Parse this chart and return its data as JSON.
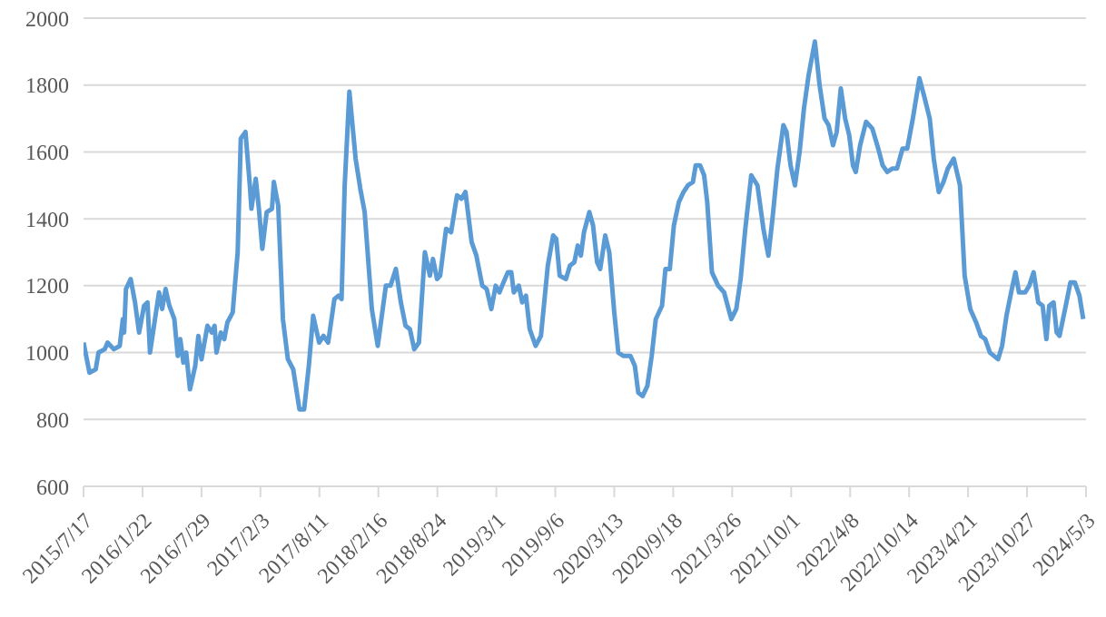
{
  "chart_data": {
    "type": "line",
    "x": [
      "2015-07-17",
      "2015-08-05",
      "2015-08-25",
      "2015-09-03",
      "2015-09-23",
      "2015-10-02",
      "2015-10-22",
      "2015-11-10",
      "2015-11-20",
      "2015-11-24",
      "2015-11-30",
      "2015-12-15",
      "2015-12-29",
      "2016-01-11",
      "2016-01-27",
      "2016-02-07",
      "2016-02-15",
      "2016-03-02",
      "2016-03-15",
      "2016-03-25",
      "2016-04-05",
      "2016-04-17",
      "2016-05-03",
      "2016-05-14",
      "2016-05-22",
      "2016-06-01",
      "2016-06-10",
      "2016-06-22",
      "2016-07-09",
      "2016-07-19",
      "2016-07-29",
      "2016-08-17",
      "2016-08-31",
      "2016-09-09",
      "2016-09-15",
      "2016-09-29",
      "2016-10-10",
      "2016-10-20",
      "2016-11-06",
      "2016-11-22",
      "2016-12-02",
      "2016-12-17",
      "2016-12-31",
      "2017-01-05",
      "2017-01-19",
      "2017-01-29",
      "2017-02-09",
      "2017-02-23",
      "2017-03-12",
      "2017-03-18",
      "2017-04-01",
      "2017-04-16",
      "2017-05-02",
      "2017-05-19",
      "2017-06-08",
      "2017-06-23",
      "2017-07-08",
      "2017-07-22",
      "2017-08-10",
      "2017-08-24",
      "2017-09-08",
      "2017-09-28",
      "2017-10-11",
      "2017-10-21",
      "2017-10-31",
      "2017-11-15",
      "2017-12-05",
      "2017-12-20",
      "2018-01-03",
      "2018-01-26",
      "2018-02-14",
      "2018-03-12",
      "2018-03-27",
      "2018-04-13",
      "2018-04-29",
      "2018-05-14",
      "2018-05-28",
      "2018-06-11",
      "2018-06-26",
      "2018-07-15",
      "2018-07-31",
      "2018-08-10",
      "2018-08-23",
      "2018-09-02",
      "2018-09-21",
      "2018-10-07",
      "2018-10-26",
      "2018-11-09",
      "2018-11-22",
      "2018-12-12",
      "2018-12-27",
      "2019-01-15",
      "2019-01-29",
      "2019-02-13",
      "2019-02-27",
      "2019-03-11",
      "2019-03-24",
      "2019-04-07",
      "2019-04-18",
      "2019-04-26",
      "2019-05-12",
      "2019-05-23",
      "2019-06-04",
      "2019-06-16",
      "2019-07-05",
      "2019-07-22",
      "2019-08-13",
      "2019-08-30",
      "2019-09-09",
      "2019-09-20",
      "2019-10-10",
      "2019-10-23",
      "2019-11-06",
      "2019-11-17",
      "2019-11-27",
      "2019-12-07",
      "2019-12-24",
      "2020-01-05",
      "2020-01-18",
      "2020-01-28",
      "2020-02-13",
      "2020-02-26",
      "2020-03-13",
      "2020-03-26",
      "2020-04-11",
      "2020-05-04",
      "2020-05-18",
      "2020-05-29",
      "2020-06-12",
      "2020-06-27",
      "2020-07-11",
      "2020-07-24",
      "2020-08-13",
      "2020-08-24",
      "2020-09-07",
      "2020-09-20",
      "2020-10-06",
      "2020-10-21",
      "2020-11-04",
      "2020-11-20",
      "2020-11-29",
      "2020-12-13",
      "2020-12-26",
      "2021-01-05",
      "2021-01-20",
      "2021-02-09",
      "2021-02-28",
      "2021-03-23",
      "2021-04-08",
      "2021-04-22",
      "2021-05-07",
      "2021-05-26",
      "2021-06-15",
      "2021-07-04",
      "2021-07-20",
      "2021-08-02",
      "2021-08-18",
      "2021-09-06",
      "2021-09-16",
      "2021-09-29",
      "2021-10-13",
      "2021-10-28",
      "2021-11-11",
      "2021-11-26",
      "2021-12-16",
      "2021-12-31",
      "2022-01-16",
      "2022-01-29",
      "2022-02-12",
      "2022-02-24",
      "2022-03-09",
      "2022-03-23",
      "2022-04-05",
      "2022-04-17",
      "2022-04-26",
      "2022-05-10",
      "2022-05-29",
      "2022-06-18",
      "2022-07-07",
      "2022-07-21",
      "2022-08-05",
      "2022-08-21",
      "2022-09-05",
      "2022-09-23",
      "2022-10-08",
      "2022-10-26",
      "2022-11-16",
      "2022-12-03",
      "2022-12-19",
      "2023-01-01",
      "2023-01-17",
      "2023-02-01",
      "2023-02-15",
      "2023-03-06",
      "2023-03-26",
      "2023-04-10",
      "2023-04-28",
      "2023-05-17",
      "2023-06-01",
      "2023-06-15",
      "2023-06-30",
      "2023-07-26",
      "2023-08-08",
      "2023-08-22",
      "2023-09-06",
      "2023-09-20",
      "2023-10-01",
      "2023-10-21",
      "2023-11-03",
      "2023-11-17",
      "2023-12-02",
      "2023-12-16",
      "2023-12-28",
      "2024-01-06",
      "2024-01-20",
      "2024-01-30",
      "2024-02-08",
      "2024-02-28",
      "2024-03-14",
      "2024-03-28",
      "2024-04-12",
      "2024-04-24"
    ],
    "series": [
      {
        "color": "#5b9bd5",
        "values": [
          1030,
          940,
          950,
          1000,
          1010,
          1030,
          1010,
          1020,
          1100,
          1060,
          1190,
          1220,
          1150,
          1060,
          1140,
          1150,
          1000,
          1100,
          1180,
          1130,
          1190,
          1140,
          1100,
          990,
          1040,
          970,
          1000,
          890,
          960,
          1050,
          980,
          1080,
          1060,
          1080,
          1000,
          1060,
          1040,
          1090,
          1120,
          1300,
          1640,
          1660,
          1500,
          1430,
          1520,
          1430,
          1310,
          1420,
          1430,
          1510,
          1440,
          1100,
          980,
          950,
          830,
          830,
          960,
          1110,
          1030,
          1050,
          1030,
          1160,
          1170,
          1160,
          1500,
          1780,
          1580,
          1490,
          1420,
          1130,
          1020,
          1200,
          1200,
          1250,
          1150,
          1080,
          1070,
          1010,
          1030,
          1300,
          1230,
          1280,
          1220,
          1230,
          1370,
          1360,
          1470,
          1460,
          1480,
          1330,
          1290,
          1200,
          1190,
          1130,
          1200,
          1180,
          1210,
          1240,
          1240,
          1180,
          1200,
          1150,
          1170,
          1070,
          1020,
          1050,
          1260,
          1350,
          1340,
          1230,
          1220,
          1260,
          1270,
          1320,
          1290,
          1360,
          1420,
          1380,
          1270,
          1250,
          1350,
          1300,
          1120,
          1000,
          990,
          990,
          960,
          880,
          870,
          900,
          990,
          1100,
          1140,
          1250,
          1250,
          1380,
          1450,
          1480,
          1500,
          1510,
          1560,
          1560,
          1530,
          1450,
          1240,
          1200,
          1180,
          1100,
          1130,
          1220,
          1370,
          1530,
          1500,
          1370,
          1290,
          1400,
          1550,
          1680,
          1660,
          1560,
          1500,
          1600,
          1730,
          1830,
          1930,
          1800,
          1700,
          1680,
          1620,
          1660,
          1790,
          1700,
          1650,
          1560,
          1540,
          1620,
          1690,
          1670,
          1610,
          1560,
          1540,
          1550,
          1550,
          1610,
          1610,
          1700,
          1820,
          1760,
          1700,
          1580,
          1480,
          1510,
          1550,
          1580,
          1500,
          1230,
          1130,
          1090,
          1050,
          1040,
          1000,
          980,
          1020,
          1110,
          1180,
          1240,
          1180,
          1180,
          1200,
          1240,
          1150,
          1140,
          1040,
          1140,
          1150,
          1060,
          1050,
          1140,
          1210,
          1210,
          1170,
          1100
        ]
      }
    ],
    "xlim": [
      "2015-07-17",
      "2024-05-03"
    ],
    "xticks": [
      {
        "value": "2015-07-17",
        "label": "2015/7/17"
      },
      {
        "value": "2016-01-22",
        "label": "2016/1/22"
      },
      {
        "value": "2016-07-29",
        "label": "2016/7/29"
      },
      {
        "value": "2017-02-03",
        "label": "2017/2/3"
      },
      {
        "value": "2017-08-11",
        "label": "2017/8/11"
      },
      {
        "value": "2018-02-16",
        "label": "2018/2/16"
      },
      {
        "value": "2018-08-24",
        "label": "2018/8/24"
      },
      {
        "value": "2019-03-01",
        "label": "2019/3/1"
      },
      {
        "value": "2019-09-06",
        "label": "2019/9/6"
      },
      {
        "value": "2020-03-13",
        "label": "2020/3/13"
      },
      {
        "value": "2020-09-18",
        "label": "2020/9/18"
      },
      {
        "value": "2021-03-26",
        "label": "2021/3/26"
      },
      {
        "value": "2021-10-01",
        "label": "2021/10/1"
      },
      {
        "value": "2022-04-08",
        "label": "2022/4/8"
      },
      {
        "value": "2022-10-14",
        "label": "2022/10/14"
      },
      {
        "value": "2023-04-21",
        "label": "2023/4/21"
      },
      {
        "value": "2023-10-27",
        "label": "2023/10/27"
      },
      {
        "value": "2024-05-03",
        "label": "2024/5/3"
      }
    ],
    "ylim": [
      600,
      2000
    ],
    "yticks": [
      600,
      800,
      1000,
      1200,
      1400,
      1600,
      1800,
      2000
    ],
    "grid": "y",
    "marker": "none",
    "line_style": "solid"
  }
}
